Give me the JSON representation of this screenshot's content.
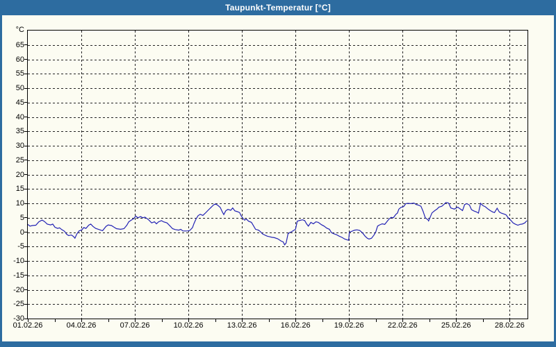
{
  "window": {
    "title": "Taupunkt-Temperatur [°C]",
    "title_bar_color": "#2D6CA0",
    "content_background": "#FCFCF2",
    "border_color": "#2D6CA0"
  },
  "chart_data": {
    "type": "line",
    "title": "Taupunkt-Temperatur [°C]",
    "y_unit_label": "°C",
    "ylim": [
      -30,
      70
    ],
    "y_tick_step": 5,
    "y_tick_values": [
      65,
      60,
      55,
      50,
      45,
      40,
      35,
      30,
      25,
      20,
      15,
      10,
      5,
      0,
      -5,
      -10,
      -15,
      -20,
      -25,
      -30
    ],
    "xlim_days": [
      0,
      28
    ],
    "x_tick_labels": [
      "01.02.26",
      "04.02.26",
      "07.02.26",
      "10.02.26",
      "13.02.26",
      "16.02.26",
      "19.02.26",
      "22.02.26",
      "25.02.26",
      "28.02.26"
    ],
    "x_tick_days": [
      0,
      3,
      6,
      9,
      12,
      15,
      18,
      21,
      24,
      27
    ],
    "x_minor_tick_step_days": 1.5,
    "grid": "dashed",
    "grid_color": "#222222",
    "axis_color": "#000000",
    "line_color": "#2222B4",
    "legend": "none",
    "series": [
      {
        "name": "Taupunkt-Temperatur",
        "points_day_degC": [
          [
            0.0,
            2.7
          ],
          [
            0.12,
            2.1
          ],
          [
            0.25,
            2.3
          ],
          [
            0.45,
            2.4
          ],
          [
            0.62,
            3.6
          ],
          [
            0.8,
            4.2
          ],
          [
            0.93,
            3.7
          ],
          [
            1.09,
            2.8
          ],
          [
            1.28,
            2.5
          ],
          [
            1.4,
            2.8
          ],
          [
            1.52,
            1.7
          ],
          [
            1.67,
            1.3
          ],
          [
            1.78,
            1.5
          ],
          [
            1.9,
            0.9
          ],
          [
            2.06,
            0.3
          ],
          [
            2.17,
            -0.7
          ],
          [
            2.29,
            -1.2
          ],
          [
            2.44,
            -1.0
          ],
          [
            2.56,
            -1.5
          ],
          [
            2.64,
            -2.1
          ],
          [
            2.75,
            -0.6
          ],
          [
            2.87,
            0.4
          ],
          [
            3.03,
            0.8
          ],
          [
            3.14,
            1.6
          ],
          [
            3.26,
            1.3
          ],
          [
            3.41,
            2.4
          ],
          [
            3.53,
            2.8
          ],
          [
            3.65,
            2.0
          ],
          [
            3.8,
            1.3
          ],
          [
            4.0,
            0.9
          ],
          [
            4.19,
            0.5
          ],
          [
            4.38,
            2.0
          ],
          [
            4.5,
            2.5
          ],
          [
            4.69,
            2.3
          ],
          [
            4.81,
            1.8
          ],
          [
            4.97,
            1.2
          ],
          [
            5.2,
            1.0
          ],
          [
            5.39,
            1.2
          ],
          [
            5.55,
            2.4
          ],
          [
            5.66,
            3.6
          ],
          [
            5.78,
            4.1
          ],
          [
            5.93,
            4.7
          ],
          [
            6.05,
            5.6
          ],
          [
            6.17,
            5.0
          ],
          [
            6.32,
            5.4
          ],
          [
            6.44,
            5.0
          ],
          [
            6.56,
            5.2
          ],
          [
            6.75,
            4.4
          ],
          [
            6.94,
            3.2
          ],
          [
            7.1,
            3.6
          ],
          [
            7.21,
            2.9
          ],
          [
            7.33,
            3.6
          ],
          [
            7.49,
            4.0
          ],
          [
            7.6,
            3.6
          ],
          [
            7.8,
            3.2
          ],
          [
            7.99,
            2.0
          ],
          [
            8.11,
            1.2
          ],
          [
            8.26,
            0.9
          ],
          [
            8.46,
            0.7
          ],
          [
            8.57,
            1.0
          ],
          [
            8.69,
            0.4
          ],
          [
            8.96,
            0.4
          ],
          [
            9.08,
            0.6
          ],
          [
            9.23,
            1.6
          ],
          [
            9.31,
            3.0
          ],
          [
            9.42,
            4.5
          ],
          [
            9.54,
            5.7
          ],
          [
            9.66,
            6.2
          ],
          [
            9.81,
            5.8
          ],
          [
            9.93,
            6.5
          ],
          [
            10.12,
            7.7
          ],
          [
            10.24,
            8.4
          ],
          [
            10.4,
            9.4
          ],
          [
            10.51,
            9.8
          ],
          [
            10.63,
            9.4
          ],
          [
            10.78,
            8.6
          ],
          [
            10.9,
            7.0
          ],
          [
            10.98,
            6.1
          ],
          [
            11.09,
            7.4
          ],
          [
            11.21,
            7.9
          ],
          [
            11.37,
            7.6
          ],
          [
            11.48,
            8.4
          ],
          [
            11.6,
            7.4
          ],
          [
            11.75,
            7.1
          ],
          [
            11.87,
            6.8
          ],
          [
            11.95,
            5.7
          ],
          [
            12.05,
            4.9
          ],
          [
            12.14,
            4.2
          ],
          [
            12.26,
            4.5
          ],
          [
            12.37,
            3.8
          ],
          [
            12.53,
            3.4
          ],
          [
            12.65,
            2.2
          ],
          [
            12.76,
            1.0
          ],
          [
            12.92,
            0.7
          ],
          [
            13.03,
            0.2
          ],
          [
            13.15,
            -0.6
          ],
          [
            13.31,
            -1.1
          ],
          [
            13.42,
            -1.4
          ],
          [
            13.54,
            -1.6
          ],
          [
            13.69,
            -1.8
          ],
          [
            13.81,
            -1.9
          ],
          [
            14.0,
            -2.3
          ],
          [
            14.2,
            -3.1
          ],
          [
            14.31,
            -3.4
          ],
          [
            14.39,
            -4.4
          ],
          [
            14.47,
            -3.8
          ],
          [
            14.51,
            -2.7
          ],
          [
            14.58,
            -0.6
          ],
          [
            14.66,
            -0.2
          ],
          [
            14.74,
            0.0
          ],
          [
            14.9,
            0.6
          ],
          [
            15.0,
            1.0
          ],
          [
            15.1,
            3.8
          ],
          [
            15.25,
            4.1
          ],
          [
            15.4,
            4.3
          ],
          [
            15.52,
            4.0
          ],
          [
            15.62,
            2.9
          ],
          [
            15.72,
            2.1
          ],
          [
            15.86,
            3.4
          ],
          [
            16.0,
            2.9
          ],
          [
            16.14,
            3.6
          ],
          [
            16.28,
            3.4
          ],
          [
            16.45,
            2.6
          ],
          [
            16.6,
            2.1
          ],
          [
            16.75,
            1.4
          ],
          [
            16.9,
            1.0
          ],
          [
            17.02,
            -0.2
          ],
          [
            17.16,
            -0.6
          ],
          [
            17.3,
            -0.9
          ],
          [
            17.45,
            -1.4
          ],
          [
            17.6,
            -1.8
          ],
          [
            17.76,
            -2.4
          ],
          [
            17.9,
            -2.7
          ],
          [
            17.98,
            -2.8
          ],
          [
            18.02,
            0.0
          ],
          [
            18.15,
            0.3
          ],
          [
            18.32,
            0.7
          ],
          [
            18.45,
            0.8
          ],
          [
            18.6,
            0.6
          ],
          [
            18.76,
            -0.3
          ],
          [
            18.9,
            -1.4
          ],
          [
            19.02,
            -2.1
          ],
          [
            19.12,
            -2.4
          ],
          [
            19.26,
            -2.1
          ],
          [
            19.4,
            -1.0
          ],
          [
            19.5,
            0.1
          ],
          [
            19.6,
            2.1
          ],
          [
            19.71,
            2.5
          ],
          [
            19.86,
            2.9
          ],
          [
            20.0,
            2.7
          ],
          [
            20.14,
            3.8
          ],
          [
            20.25,
            4.6
          ],
          [
            20.36,
            5.1
          ],
          [
            20.48,
            5.0
          ],
          [
            20.63,
            6.2
          ],
          [
            20.71,
            6.6
          ],
          [
            20.79,
            8.0
          ],
          [
            20.91,
            8.6
          ],
          [
            21.06,
            8.9
          ],
          [
            21.18,
            9.9
          ],
          [
            21.3,
            10.0
          ],
          [
            21.45,
            9.9
          ],
          [
            21.64,
            10.1
          ],
          [
            21.76,
            9.6
          ],
          [
            21.88,
            9.4
          ],
          [
            22.03,
            9.0
          ],
          [
            22.15,
            7.2
          ],
          [
            22.27,
            5.0
          ],
          [
            22.42,
            4.3
          ],
          [
            22.46,
            3.9
          ],
          [
            22.65,
            6.7
          ],
          [
            22.81,
            7.5
          ],
          [
            22.93,
            8.0
          ],
          [
            23.04,
            8.7
          ],
          [
            23.2,
            9.0
          ],
          [
            23.31,
            9.6
          ],
          [
            23.43,
            10.3
          ],
          [
            23.58,
            10.1
          ],
          [
            23.7,
            8.4
          ],
          [
            23.9,
            8.0
          ],
          [
            24.09,
            8.7
          ],
          [
            24.2,
            8.2
          ],
          [
            24.36,
            7.5
          ],
          [
            24.48,
            9.6
          ],
          [
            24.6,
            9.9
          ],
          [
            24.75,
            9.4
          ],
          [
            24.86,
            7.8
          ],
          [
            24.98,
            7.4
          ],
          [
            25.14,
            7.0
          ],
          [
            25.25,
            6.6
          ],
          [
            25.37,
            10.0
          ],
          [
            25.5,
            9.2
          ],
          [
            25.64,
            8.8
          ],
          [
            25.79,
            8.0
          ],
          [
            25.91,
            7.5
          ],
          [
            26.05,
            7.0
          ],
          [
            26.15,
            6.8
          ],
          [
            26.3,
            8.3
          ],
          [
            26.42,
            7.0
          ],
          [
            26.53,
            6.6
          ],
          [
            26.69,
            6.3
          ],
          [
            26.8,
            6.0
          ],
          [
            26.92,
            5.0
          ],
          [
            27.08,
            4.0
          ],
          [
            27.19,
            3.2
          ],
          [
            27.31,
            2.8
          ],
          [
            27.46,
            2.4
          ],
          [
            27.58,
            2.7
          ],
          [
            27.7,
            2.8
          ],
          [
            27.85,
            3.2
          ],
          [
            27.97,
            4.0
          ]
        ]
      }
    ]
  }
}
